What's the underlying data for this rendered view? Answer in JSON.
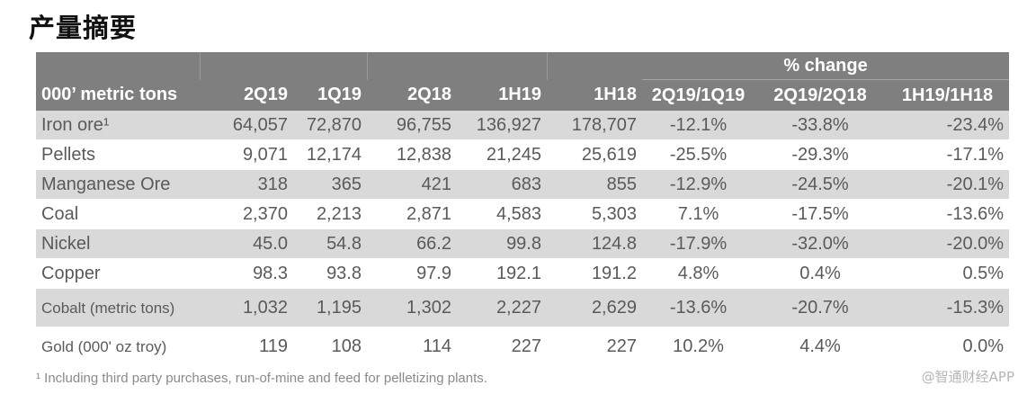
{
  "title": "产量摘要",
  "table": {
    "group_header": "% change",
    "columns": [
      "000’ metric tons",
      "2Q19",
      "1Q19",
      "2Q18",
      "1H19",
      "1H18",
      "2Q19/1Q19",
      "2Q19/2Q18",
      "1H19/1H18"
    ],
    "rows": [
      {
        "label": "Iron ore¹",
        "values": [
          "64,057",
          "72,870",
          "96,755",
          "136,927",
          "178,707",
          "-12.1%",
          "-33.8%",
          "-23.4%"
        ]
      },
      {
        "label": "Pellets",
        "values": [
          "9,071",
          "12,174",
          "12,838",
          "21,245",
          "25,619",
          "-25.5%",
          "-29.3%",
          "-17.1%"
        ]
      },
      {
        "label": "Manganese Ore",
        "values": [
          "318",
          "365",
          "421",
          "683",
          "855",
          "-12.9%",
          "-24.5%",
          "-20.1%"
        ]
      },
      {
        "label": "Coal",
        "values": [
          "2,370",
          "2,213",
          "2,871",
          "4,583",
          "5,303",
          "7.1%",
          "-17.5%",
          "-13.6%"
        ]
      },
      {
        "label": "Nickel",
        "values": [
          "45.0",
          "54.8",
          "66.2",
          "99.8",
          "124.8",
          "-17.9%",
          "-32.0%",
          "-20.0%"
        ]
      },
      {
        "label": "Copper",
        "values": [
          "98.3",
          "93.8",
          "97.9",
          "192.1",
          "191.2",
          "4.8%",
          "0.4%",
          "0.5%"
        ]
      },
      {
        "label": "Cobalt (metric tons)",
        "values": [
          "1,032",
          "1,195",
          "1,302",
          "2,227",
          "2,629",
          "-13.6%",
          "-20.7%",
          "-15.3%"
        ]
      },
      {
        "label": "Gold (000' oz troy)",
        "values": [
          "119",
          "108",
          "114",
          "227",
          "227",
          "10.2%",
          "4.4%",
          "0.0%"
        ]
      }
    ]
  },
  "footnote": "¹ Including third party purchases, run-of-mine and feed for pelletizing plants.",
  "watermark": "@智通财经APP",
  "colors": {
    "header_bg": "#7f7f7f",
    "row_shade": "#d9d9d9",
    "text": "#5a5a5a"
  }
}
